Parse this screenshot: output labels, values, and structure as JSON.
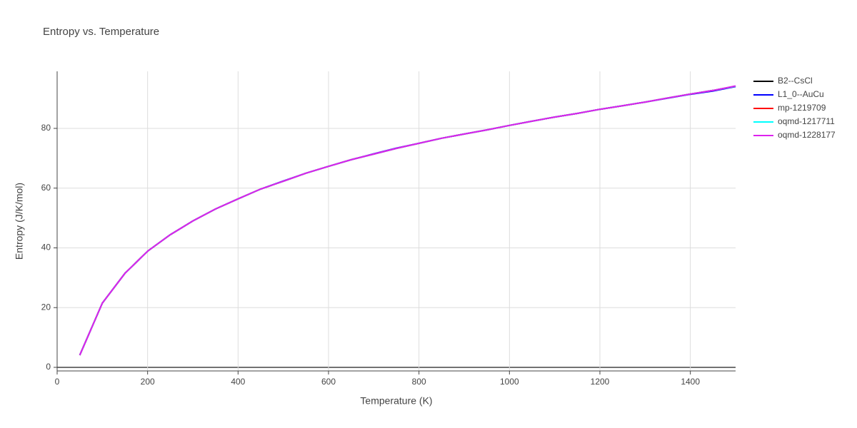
{
  "chart_data": {
    "type": "line",
    "title": "Entropy vs. Temperature",
    "xlabel": "Temperature (K)",
    "ylabel": "Entropy (J/K/mol)",
    "x": [
      50,
      100,
      150,
      200,
      250,
      300,
      350,
      400,
      450,
      500,
      550,
      600,
      650,
      700,
      750,
      800,
      850,
      900,
      950,
      1000,
      1050,
      1100,
      1150,
      1200,
      1250,
      1300,
      1350,
      1400,
      1450,
      1500
    ],
    "series": [
      {
        "name": "B2--CsCl",
        "color": "#000000",
        "values": [
          4.1,
          21.5,
          31.5,
          38.9,
          44.4,
          49.0,
          53.0,
          56.4,
          59.7,
          62.3,
          65.0,
          67.3,
          69.5,
          71.4,
          73.3,
          75.0,
          76.7,
          78.1,
          79.5,
          81.0,
          82.4,
          83.8,
          85.0,
          86.4,
          87.6,
          88.8,
          90.2,
          91.5,
          92.7,
          94.1
        ]
      },
      {
        "name": "L1_0--AuCu",
        "color": "#0000ff",
        "values": [
          4.1,
          21.5,
          31.5,
          38.9,
          44.4,
          49.0,
          53.0,
          56.4,
          59.7,
          62.4,
          65.0,
          67.3,
          69.5,
          71.5,
          73.4,
          75.0,
          76.7,
          78.1,
          79.5,
          81.0,
          82.4,
          83.8,
          85.0,
          86.4,
          87.6,
          88.8,
          90.1,
          91.4,
          92.5,
          94.0
        ]
      },
      {
        "name": "mp-1219709",
        "color": "#ff0000",
        "values": [
          4.1,
          21.5,
          31.5,
          38.9,
          44.4,
          49.0,
          53.0,
          56.4,
          59.7,
          62.3,
          65.0,
          67.3,
          69.5,
          71.4,
          73.3,
          75.0,
          76.7,
          78.1,
          79.5,
          81.0,
          82.4,
          83.8,
          85.0,
          86.4,
          87.6,
          88.8,
          90.2,
          91.5,
          92.7,
          94.1
        ]
      },
      {
        "name": "oqmd-1217711",
        "color": "#00ffff",
        "values": [
          4.1,
          21.5,
          31.5,
          38.9,
          44.4,
          49.0,
          53.0,
          56.4,
          59.7,
          62.3,
          65.0,
          67.3,
          69.5,
          71.4,
          73.3,
          75.0,
          76.7,
          78.1,
          79.5,
          81.0,
          82.4,
          83.8,
          85.0,
          86.4,
          87.6,
          88.8,
          90.2,
          91.5,
          92.7,
          94.1
        ]
      },
      {
        "name": "oqmd-1228177",
        "color": "#dd22ee",
        "values": [
          4.1,
          21.5,
          31.5,
          38.9,
          44.4,
          49.0,
          53.0,
          56.4,
          59.7,
          62.3,
          65.0,
          67.3,
          69.5,
          71.4,
          73.3,
          75.0,
          76.7,
          78.1,
          79.5,
          81.0,
          82.4,
          83.8,
          85.0,
          86.4,
          87.6,
          88.8,
          90.2,
          91.5,
          92.7,
          94.2
        ]
      }
    ],
    "xlim": [
      0,
      1500
    ],
    "xticks": [
      0,
      200,
      400,
      600,
      800,
      1000,
      1200,
      1400
    ],
    "ylim": [
      -1.2,
      99.1
    ],
    "yticks": [
      0,
      20,
      40,
      60,
      80
    ],
    "grid": true,
    "legend": "right"
  }
}
